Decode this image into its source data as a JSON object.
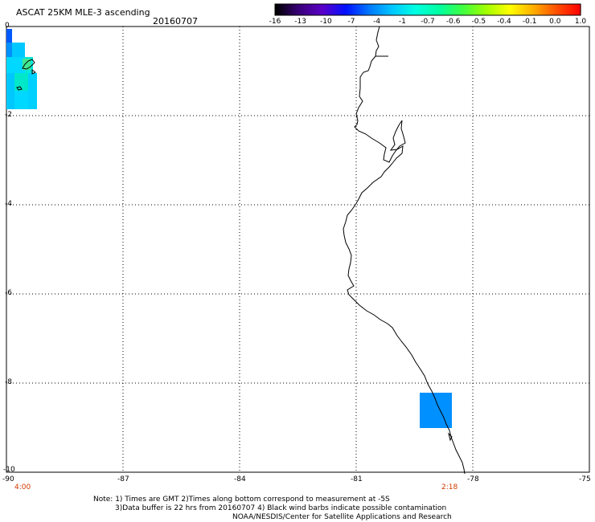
{
  "header": {
    "title": "ASCAT 25KM MLE-3 ascending",
    "date": "20160707"
  },
  "colorbar": {
    "labels": [
      "-16",
      "-13",
      "-10",
      "-7",
      "-4",
      "-1",
      "-0.7",
      "-0.6",
      "-0.5",
      "-0.4",
      "-0.1",
      "0.0",
      "1.0"
    ],
    "colors": [
      "#000000",
      "#3a007a",
      "#5a00c8",
      "#0010ff",
      "#0078ff",
      "#00c8ff",
      "#00ffe0",
      "#00ffa0",
      "#40ff40",
      "#a0ff00",
      "#ffff00",
      "#ffb000",
      "#ff5000",
      "#ff0000"
    ]
  },
  "axes": {
    "x_labels": [
      "-90",
      "-87",
      "-84",
      "-81",
      "-78",
      "-75"
    ],
    "y_labels": [
      "0",
      "-2",
      "-4",
      "-6",
      "-8",
      "-10"
    ]
  },
  "time_labels": {
    "left": "4:00",
    "right": "2:18"
  },
  "notes": {
    "line1": "Note: 1) Times are GMT 2)Times along bottom correspond to measurement at -5S",
    "line2": "3)Data buffer is 22 hrs from 20160707 4) Black wind barbs indicate possible contamination",
    "line3": "NOAA/NESDIS/Center for Satellite Applications and Research"
  }
}
